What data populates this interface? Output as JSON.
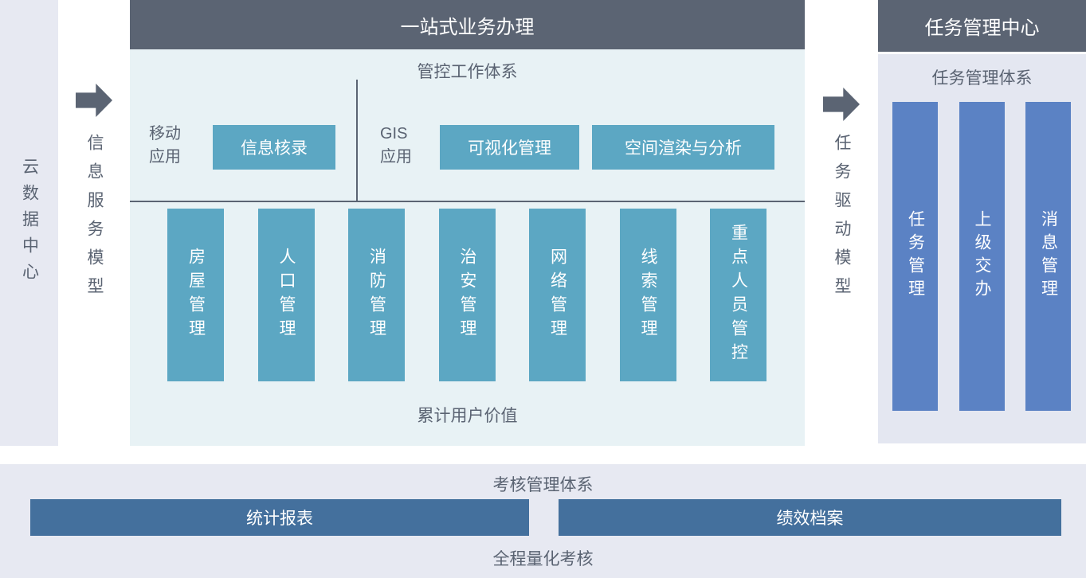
{
  "palette": {
    "dark": "#5b6473",
    "teal": "#5ca7c3",
    "blue": "#5b82c4",
    "steel": "#44709d",
    "bg-teal": "#e8f2f5",
    "bg-lav": "#e7e9f2",
    "bg-lav2": "#e4e7f1",
    "text": "#5a6372"
  },
  "left_sidebar": {
    "label": "云数据中心"
  },
  "flow_left": {
    "label": "信息服务模型"
  },
  "main_panel": {
    "title": "一站式业务办理",
    "subtitle": "管控工作体系",
    "mobile_group": {
      "label": "移动\n应用",
      "button": "信息核录"
    },
    "gis_group": {
      "label": "GIS\n应用",
      "button1": "可视化管理",
      "button2": "空间渲染与分析"
    },
    "columns": [
      "房屋管理",
      "人口管理",
      "消防管理",
      "治安管理",
      "网络管理",
      "线索管理",
      "重点人员管控"
    ],
    "footer": "累计用户价值"
  },
  "flow_right": {
    "label": "任务驱动模型"
  },
  "right_panel": {
    "title": "任务管理中心",
    "subtitle": "任务管理体系",
    "columns": [
      "任务管理",
      "上级交办",
      "消息管理"
    ]
  },
  "bottom_panel": {
    "title": "考核管理体系",
    "bar_left": "统计报表",
    "bar_right": "绩效档案",
    "footer": "全程量化考核"
  }
}
